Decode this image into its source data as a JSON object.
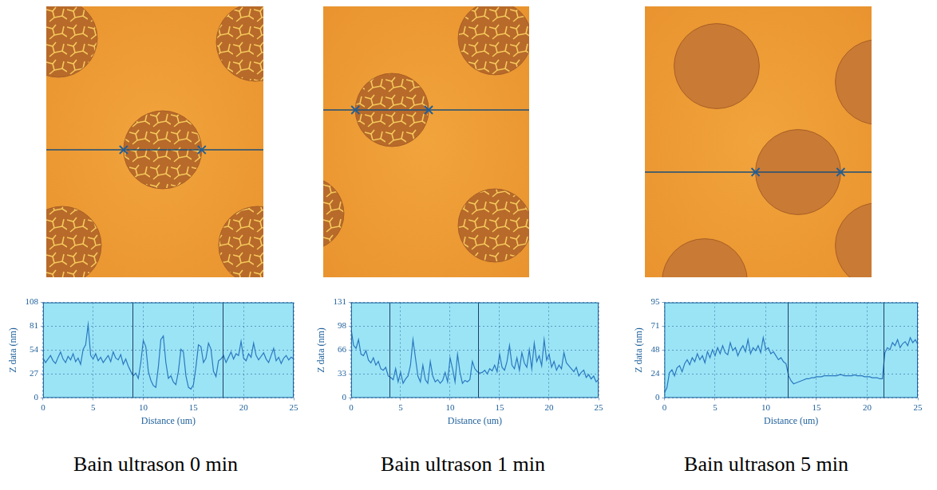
{
  "chart_data": [
    {
      "type": "line",
      "title": "Bain ultrason 0 min",
      "x_label": "Distance (um)",
      "y_label": "Z data (nm)",
      "color": "#2a78c0",
      "grid": true,
      "xlim": [
        0,
        25
      ],
      "xticks": [
        0,
        5,
        10,
        15,
        20,
        25
      ],
      "ylim": [
        0,
        108
      ],
      "yticks": [
        0,
        27,
        54,
        81,
        108
      ],
      "cursors": [
        8.9,
        17.9
      ],
      "x": [
        0,
        0.25,
        0.5,
        0.75,
        1,
        1.25,
        1.5,
        1.75,
        2,
        2.25,
        2.5,
        2.75,
        3,
        3.25,
        3.5,
        3.75,
        4,
        4.25,
        4.5,
        4.75,
        5,
        5.25,
        5.5,
        5.75,
        6,
        6.25,
        6.5,
        6.75,
        7,
        7.25,
        7.5,
        7.75,
        8,
        8.25,
        8.5,
        8.75,
        9,
        9.25,
        9.5,
        9.75,
        10,
        10.25,
        10.5,
        10.75,
        11,
        11.25,
        11.5,
        11.75,
        12,
        12.25,
        12.5,
        12.75,
        13,
        13.25,
        13.5,
        13.75,
        14,
        14.25,
        14.5,
        14.75,
        15,
        15.25,
        15.5,
        15.75,
        16,
        16.25,
        16.5,
        16.75,
        17,
        17.25,
        17.5,
        17.75,
        18,
        18.25,
        18.5,
        18.75,
        19,
        19.25,
        19.5,
        19.75,
        20,
        20.25,
        20.5,
        20.75,
        21,
        21.25,
        21.5,
        21.75,
        22,
        22.25,
        22.5,
        22.75,
        23,
        23.25,
        23.5,
        23.75,
        24,
        24.25,
        24.5,
        24.75,
        25
      ],
      "values": [
        45,
        40,
        44,
        48,
        42,
        39,
        46,
        52,
        44,
        40,
        47,
        43,
        50,
        41,
        45,
        38,
        55,
        60,
        83,
        48,
        44,
        50,
        42,
        46,
        40,
        44,
        48,
        41,
        52,
        45,
        43,
        49,
        38,
        44,
        36,
        30,
        25,
        28,
        22,
        40,
        65,
        58,
        30,
        20,
        14,
        12,
        35,
        66,
        70,
        40,
        22,
        25,
        18,
        15,
        30,
        55,
        52,
        25,
        12,
        10,
        15,
        35,
        60,
        58,
        40,
        45,
        62,
        55,
        30,
        24,
        42,
        44,
        48,
        40,
        46,
        52,
        44,
        50,
        48,
        64,
        45,
        42,
        50,
        46,
        62,
        48,
        43,
        47,
        51,
        44,
        40,
        48,
        56,
        42,
        46,
        39,
        45,
        48,
        43,
        46,
        44
      ]
    },
    {
      "type": "line",
      "title": "Bain ultrason 1 min",
      "x_label": "Distance (um)",
      "y_label": "Z data (nm)",
      "color": "#2a78c0",
      "grid": true,
      "xlim": [
        0,
        25
      ],
      "xticks": [
        0,
        5,
        10,
        15,
        20,
        25
      ],
      "ylim": [
        0,
        131
      ],
      "yticks": [
        0,
        {
          "value": 32.75,
          "label": "33"
        },
        {
          "value": 65.5,
          "label": "66"
        },
        {
          "value": 98.25,
          "label": "98"
        },
        131
      ],
      "cursors": [
        3.9,
        12.8
      ],
      "x": [
        0,
        0.25,
        0.5,
        0.75,
        1,
        1.25,
        1.5,
        1.75,
        2,
        2.25,
        2.5,
        2.75,
        3,
        3.25,
        3.5,
        3.75,
        4,
        4.25,
        4.5,
        4.75,
        5,
        5.25,
        5.5,
        5.75,
        6,
        6.25,
        6.5,
        6.75,
        7,
        7.25,
        7.5,
        7.75,
        8,
        8.25,
        8.5,
        8.75,
        9,
        9.25,
        9.5,
        9.75,
        10,
        10.25,
        10.5,
        10.75,
        11,
        11.25,
        11.5,
        11.75,
        12,
        12.25,
        12.5,
        12.75,
        13,
        13.25,
        13.5,
        13.75,
        14,
        14.25,
        14.5,
        14.75,
        15,
        15.25,
        15.5,
        15.75,
        16,
        16.25,
        16.5,
        16.75,
        17,
        17.25,
        17.5,
        17.75,
        18,
        18.25,
        18.5,
        18.75,
        19,
        19.25,
        19.5,
        19.75,
        20,
        20.25,
        20.5,
        20.75,
        21,
        21.25,
        21.5,
        21.75,
        22,
        22.25,
        22.5,
        22.75,
        23,
        23.25,
        23.5,
        23.75,
        24,
        24.25,
        24.5,
        24.75,
        25
      ],
      "values": [
        95,
        72,
        68,
        80,
        60,
        58,
        65,
        52,
        48,
        55,
        45,
        50,
        40,
        38,
        42,
        30,
        28,
        25,
        40,
        22,
        35,
        20,
        26,
        30,
        45,
        80,
        55,
        30,
        22,
        45,
        25,
        20,
        50,
        30,
        22,
        25,
        20,
        24,
        35,
        22,
        55,
        40,
        22,
        60,
        35,
        20,
        24,
        22,
        25,
        50,
        40,
        36,
        34,
        35,
        38,
        33,
        40,
        37,
        45,
        36,
        60,
        42,
        38,
        50,
        72,
        45,
        40,
        55,
        38,
        62,
        48,
        42,
        66,
        40,
        75,
        50,
        58,
        44,
        80,
        52,
        60,
        42,
        50,
        38,
        45,
        40,
        62,
        48,
        44,
        40,
        36,
        42,
        30,
        35,
        38,
        28,
        32,
        26,
        30,
        22,
        25
      ]
    },
    {
      "type": "line",
      "title": "Bain ultrason 5 min",
      "x_label": "Distance (um)",
      "y_label": "Z data (nm)",
      "color": "#2a78c0",
      "grid": true,
      "xlim": [
        0,
        25
      ],
      "xticks": [
        0,
        5,
        10,
        15,
        20,
        25
      ],
      "ylim": [
        0,
        95
      ],
      "yticks": [
        0,
        {
          "value": 23.75,
          "label": "24"
        },
        {
          "value": 47.5,
          "label": "48"
        },
        {
          "value": 71.25,
          "label": "71"
        },
        95
      ],
      "cursors": [
        12.2,
        21.6
      ],
      "x": [
        0,
        0.25,
        0.5,
        0.75,
        1,
        1.25,
        1.5,
        1.75,
        2,
        2.25,
        2.5,
        2.75,
        3,
        3.25,
        3.5,
        3.75,
        4,
        4.25,
        4.5,
        4.75,
        5,
        5.25,
        5.5,
        5.75,
        6,
        6.25,
        6.5,
        6.75,
        7,
        7.25,
        7.5,
        7.75,
        8,
        8.25,
        8.5,
        8.75,
        9,
        9.25,
        9.5,
        9.75,
        10,
        10.25,
        10.5,
        10.75,
        11,
        11.25,
        11.5,
        11.75,
        12,
        12.25,
        12.5,
        12.75,
        13,
        13.25,
        13.5,
        13.75,
        14,
        14.25,
        14.5,
        14.75,
        15,
        15.25,
        15.5,
        15.75,
        16,
        16.25,
        16.5,
        16.75,
        17,
        17.25,
        17.5,
        17.75,
        18,
        18.25,
        18.5,
        18.75,
        19,
        19.25,
        19.5,
        19.75,
        20,
        20.25,
        20.5,
        20.75,
        21,
        21.25,
        21.5,
        21.75,
        22,
        22.25,
        22.5,
        22.75,
        23,
        23.25,
        23.5,
        23.75,
        24,
        24.25,
        24.5,
        24.75,
        25
      ],
      "values": [
        5,
        10,
        25,
        28,
        22,
        30,
        32,
        26,
        34,
        38,
        33,
        40,
        36,
        44,
        38,
        42,
        35,
        46,
        40,
        48,
        42,
        50,
        44,
        52,
        45,
        43,
        55,
        47,
        50,
        42,
        48,
        52,
        46,
        58,
        44,
        50,
        47,
        52,
        45,
        60,
        48,
        50,
        44,
        46,
        42,
        38,
        40,
        36,
        34,
        22,
        17,
        14,
        15,
        16,
        17,
        18,
        19,
        19,
        20,
        20,
        21,
        21,
        21,
        22,
        22,
        22,
        22,
        22,
        22,
        23,
        23,
        22,
        22,
        22,
        22,
        23,
        22,
        22,
        22,
        21,
        21,
        21,
        20,
        20,
        20,
        19,
        19,
        45,
        50,
        48,
        55,
        52,
        58,
        50,
        54,
        56,
        52,
        60,
        55,
        58,
        53
      ]
    }
  ]
}
